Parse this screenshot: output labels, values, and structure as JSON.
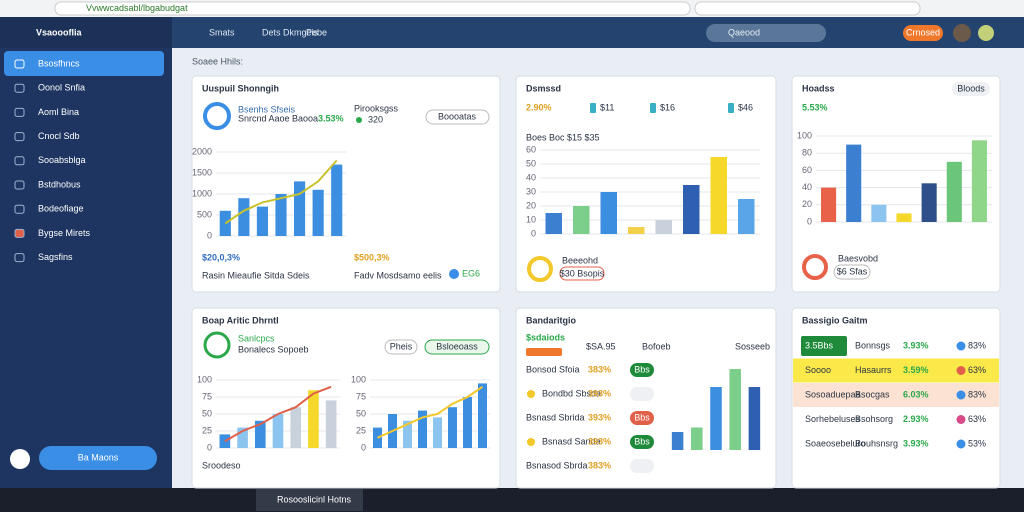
{
  "browser": {
    "url": "Vvwwcadsabl/lbgabudgat"
  },
  "header": {
    "app_name": "Vsaoooflia",
    "nav": [
      "Smats",
      "Dets Dkmgeis",
      "Pebe"
    ],
    "search": "Qaeood",
    "button": "Crnosed"
  },
  "sidebar": {
    "items": [
      "Bsosfhncs",
      "Oonol Snfia",
      "Aoml Bina",
      "Cnocl Sdb",
      "Sooabsblga",
      "Bstdhobus",
      "Bodeofiage",
      "Bygse Mirets",
      "Sagsfins"
    ],
    "footer_button": "Ba Maons"
  },
  "breadcrumb": "Soaee Hhils:",
  "cards": [
    {
      "title": "Uuspuil Shonngih",
      "subtitle": "Bsenhs Sfseis",
      "subtitle2": "Snrcnd Aaoe Baooa",
      "badge": "3.53%",
      "side_title": "Pirooksgss",
      "side_value": "320",
      "pill": "Boooatas",
      "stat": "$20,0,3%",
      "caption": "Rasin Mieaufie Sitda Sdeis",
      "stat2": "$500,3%",
      "caption2": "Fadv Mosdsamo eelis",
      "chip": "EG6"
    },
    {
      "title": "Dsmssd",
      "value": "2.90%",
      "chips": [
        "$11",
        "$16",
        "$46"
      ],
      "chart_caption": "Boes Boc $15 $35",
      "legend": "Beeeohd",
      "pill": "$30 Bsopis"
    },
    {
      "title": "Hoadss",
      "value": "5.53%",
      "badge": "Bloods",
      "legend": "Baesvobd",
      "pill": "$6 Sfas"
    },
    {
      "title": "Boap Aritic Dhrntl",
      "subtitle": "Sanlcpcs",
      "subtitle2": "Bonalecs Sopoeb",
      "pill": "Pheis",
      "pill2": "Bsloeoass",
      "caption": "Sroodeso"
    },
    {
      "title": "Bandaritgio",
      "badge": "$sdaiods",
      "head": [
        "$SA.95",
        "Bofoeb",
        "Sosseeb"
      ],
      "rows": [
        {
          "label": "Bonsod Sfoia",
          "value": "383%",
          "pill": "Bbs"
        },
        {
          "label": "Bondbd Sbsda",
          "value": "393%",
          "pill": ""
        },
        {
          "label": "Bsnasd Sbrida",
          "value": "393%",
          "pill": "Bbs"
        },
        {
          "label": "Bsnasd Sanda",
          "value": "393%",
          "pill": "Bbs"
        },
        {
          "label": "Bsnasod Sbrda",
          "value": "383%",
          "pill": ""
        }
      ]
    },
    {
      "title": "Bassigio Gaitm",
      "rows": [
        [
          "3.5Bbs",
          "Bonnsgs",
          "3.93%",
          "83%"
        ],
        [
          "Soooo",
          "Hasaurrs",
          "3.59%",
          "63%"
        ],
        [
          "Sosoaduepaa",
          "Bsocgas",
          "6.03%",
          "83%"
        ],
        [
          "Sorhebeluses",
          "Bsohsorg",
          "2.93%",
          "63%"
        ],
        [
          "Soaeosebeluro",
          "Bouhsnsrg",
          "3.93%",
          "53%"
        ]
      ]
    }
  ],
  "charts": [
    {
      "type": "bar",
      "values": [
        600,
        900,
        700,
        1000,
        1300,
        1100,
        1700
      ],
      "colors": [
        "#3b8ee0",
        "#3b8ee0",
        "#3b8ee0",
        "#3b8ee0",
        "#3b8ee0",
        "#3b8ee0",
        "#3b8ee0"
      ],
      "ylim": [
        0,
        2000
      ],
      "yticks": [
        0,
        500,
        1000,
        1500,
        2000
      ],
      "line": {
        "color": "#c9c22a",
        "values": [
          300,
          600,
          800,
          900,
          1000,
          1300,
          1800
        ]
      }
    },
    {
      "type": "bar",
      "values": [
        15,
        20,
        30,
        5,
        10,
        35,
        55,
        25
      ],
      "colors": [
        "#3b7fd0",
        "#7ccf8a",
        "#3b8ee0",
        "#f2d04a",
        "#c9d1dc",
        "#2f5fb0",
        "#f5d82a",
        "#5aa4e8"
      ],
      "ylim": [
        0,
        60
      ],
      "yticks": [
        0,
        10,
        20,
        30,
        40,
        50,
        60
      ]
    },
    {
      "type": "bar",
      "values": [
        40,
        90,
        20,
        10,
        45,
        70,
        95
      ],
      "colors": [
        "#e8624a",
        "#3b7fd0",
        "#8cc4f0",
        "#f5d82a",
        "#2f4f8a",
        "#6cc67a",
        "#8fd68a"
      ],
      "ylim": [
        0,
        100
      ],
      "yticks": [
        0,
        20,
        40,
        60,
        80,
        100
      ]
    },
    {
      "type": "bar",
      "values": [
        20,
        30,
        40,
        50,
        60,
        85,
        70
      ],
      "colors": [
        "#3b8ee0",
        "#8cc4f0",
        "#3b8ee0",
        "#8cc4f0",
        "#c9d1dc",
        "#f5d82a",
        "#c9d1dc"
      ],
      "ylim": [
        0,
        100
      ],
      "yticks": [
        0,
        25,
        50,
        75,
        100
      ],
      "line": {
        "color": "#e0604a",
        "values": [
          10,
          25,
          35,
          50,
          60,
          80,
          90
        ]
      }
    },
    {
      "type": "bar",
      "values": [
        30,
        50,
        40,
        55,
        45,
        60,
        75,
        95
      ],
      "colors": [
        "#3b8ee0",
        "#3b8ee0",
        "#8cc4f0",
        "#3b8ee0",
        "#8cc4f0",
        "#3b8ee0",
        "#3b8ee0",
        "#3b8ee0"
      ],
      "ylim": [
        0,
        100
      ],
      "yticks": [
        0,
        25,
        50,
        75,
        100
      ],
      "line": {
        "color": "#f5c82a",
        "values": [
          15,
          25,
          35,
          45,
          50,
          65,
          75,
          90
        ]
      }
    },
    {
      "type": "bar",
      "values": [
        20,
        25,
        70,
        90,
        70
      ],
      "colors": [
        "#3b7fd0",
        "#7ccf8a",
        "#3b8ee0",
        "#7ccf8a",
        "#2f5fb0"
      ],
      "ylim": [
        0,
        100
      ]
    }
  ],
  "taskbar": {
    "app": "Rosooslicinl Hotns"
  }
}
